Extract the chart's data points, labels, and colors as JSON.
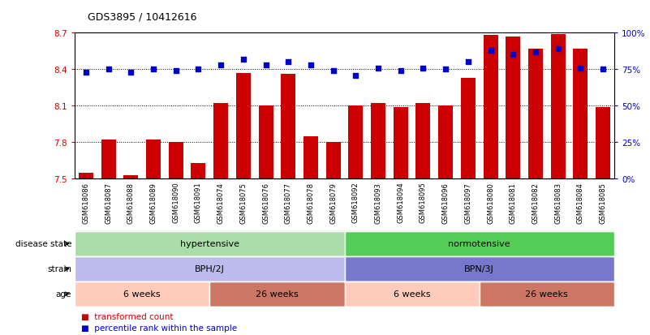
{
  "title": "GDS3895 / 10412616",
  "samples": [
    "GSM618086",
    "GSM618087",
    "GSM618088",
    "GSM618089",
    "GSM618090",
    "GSM618091",
    "GSM618074",
    "GSM618075",
    "GSM618076",
    "GSM618077",
    "GSM618078",
    "GSM618079",
    "GSM618092",
    "GSM618093",
    "GSM618094",
    "GSM618095",
    "GSM618096",
    "GSM618097",
    "GSM618080",
    "GSM618081",
    "GSM618082",
    "GSM618083",
    "GSM618084",
    "GSM618085"
  ],
  "bar_values": [
    7.55,
    7.82,
    7.53,
    7.82,
    7.8,
    7.63,
    8.12,
    8.37,
    8.1,
    8.36,
    7.85,
    7.8,
    8.1,
    8.12,
    8.09,
    8.12,
    8.1,
    8.33,
    8.68,
    8.67,
    8.57,
    8.69,
    8.57,
    8.09
  ],
  "dot_values": [
    73,
    75,
    73,
    75,
    74,
    75,
    78,
    82,
    78,
    80,
    78,
    74,
    71,
    76,
    74,
    76,
    75,
    80,
    88,
    85,
    87,
    89,
    76,
    75
  ],
  "bar_color": "#cc0000",
  "dot_color": "#0000cc",
  "ylim_left": [
    7.5,
    8.7
  ],
  "ylim_right": [
    0,
    100
  ],
  "yticks_left": [
    7.5,
    7.8,
    8.1,
    8.4,
    8.7
  ],
  "yticks_right": [
    0,
    25,
    50,
    75,
    100
  ],
  "grid_values": [
    7.8,
    8.1,
    8.4
  ],
  "disease_state_groups": [
    {
      "label": "hypertensive",
      "start": 0,
      "end": 11,
      "color": "#aaddaa"
    },
    {
      "label": "normotensive",
      "start": 12,
      "end": 23,
      "color": "#55cc55"
    }
  ],
  "strain_groups": [
    {
      "label": "BPH/2J",
      "start": 0,
      "end": 11,
      "color": "#bbbbee"
    },
    {
      "label": "BPN/3J",
      "start": 12,
      "end": 23,
      "color": "#7777cc"
    }
  ],
  "age_groups": [
    {
      "label": "6 weeks",
      "start": 0,
      "end": 5,
      "color": "#ffccbb"
    },
    {
      "label": "26 weeks",
      "start": 6,
      "end": 11,
      "color": "#cc7766"
    },
    {
      "label": "6 weeks",
      "start": 12,
      "end": 17,
      "color": "#ffccbb"
    },
    {
      "label": "26 weeks",
      "start": 18,
      "end": 23,
      "color": "#cc7766"
    }
  ],
  "row_labels": [
    "disease state",
    "strain",
    "age"
  ],
  "legend_items": [
    {
      "label": "transformed count",
      "color": "#cc0000"
    },
    {
      "label": "percentile rank within the sample",
      "color": "#0000cc"
    }
  ],
  "background_color": "#ffffff",
  "tick_label_color_left": "#cc0000",
  "tick_label_color_right": "#0000cc",
  "xtick_bg_color": "#cccccc",
  "xtick_border_color": "#ffffff"
}
